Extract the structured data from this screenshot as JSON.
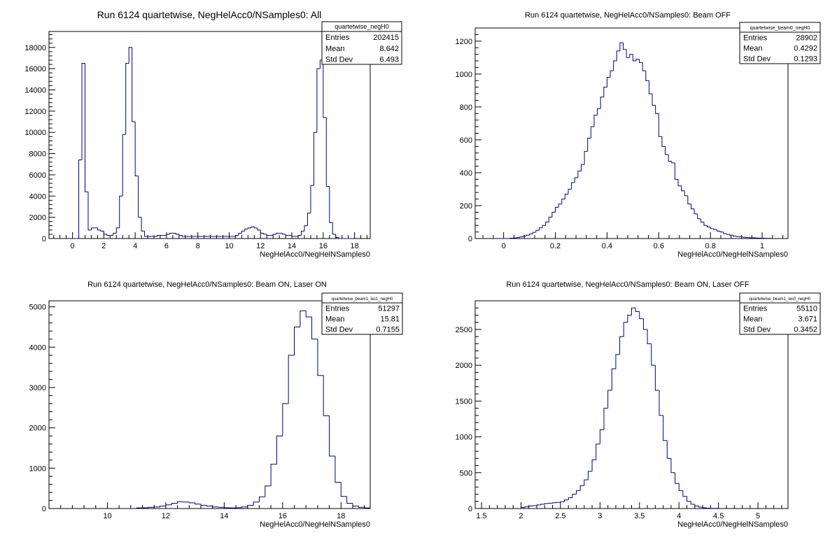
{
  "chart_data": [
    {
      "type": "bar",
      "title": "Run 6124 quartetwise, NegHelAcc0/NSamples0: All",
      "xlabel": "NegHelAcc0/NegHelNSamples0",
      "ylabel": "",
      "xlim": [
        -1.5,
        19.0
      ],
      "ylim": [
        0,
        19500
      ],
      "xticks": [
        0,
        2,
        4,
        6,
        8,
        10,
        12,
        14,
        16,
        18
      ],
      "xtick_labels": [
        "0",
        "2",
        "4",
        "6",
        "8",
        "10",
        "12",
        "14",
        "16",
        "18"
      ],
      "yticks": [
        0,
        2000,
        4000,
        6000,
        8000,
        10000,
        12000,
        14000,
        16000,
        18000
      ],
      "ytick_labels": [
        "0",
        "2000",
        "4000",
        "6000",
        "8000",
        "10000",
        "12000",
        "14000",
        "16000",
        "18000"
      ],
      "bin_start": 0.0,
      "bin_width": 0.2,
      "values": [
        0,
        0,
        7400,
        16500,
        4400,
        800,
        1000,
        1000,
        800,
        700,
        400,
        300,
        300,
        500,
        1000,
        4000,
        9800,
        16500,
        18000,
        11000,
        5900,
        2000,
        700,
        200,
        200,
        200,
        200,
        300,
        300,
        300,
        400,
        500,
        500,
        400,
        300,
        200,
        200,
        200,
        200,
        200,
        200,
        200,
        200,
        200,
        200,
        200,
        200,
        200,
        200,
        200,
        200,
        200,
        300,
        500,
        700,
        900,
        1000,
        1100,
        1000,
        800,
        500,
        400,
        300,
        300,
        400,
        500,
        500,
        400,
        300,
        300,
        200,
        200,
        300,
        700,
        1200,
        2400,
        5000,
        10000,
        16000,
        16800,
        11400,
        4900,
        1500,
        400,
        100,
        0,
        0,
        0,
        0,
        0
      ],
      "stats": {
        "name": "quartetwise_negH0",
        "rows": [
          {
            "label": "Entries",
            "value": "202415"
          },
          {
            "label": "Mean",
            "value": "8.642"
          },
          {
            "label": "Std Dev",
            "value": "6.493"
          }
        ]
      }
    },
    {
      "type": "bar",
      "title": "Run 6124 quartetwise, NegHelAcc0/NSamples0: Beam OFF",
      "xlabel": "NegHelAcc0/NegHelNSamples0",
      "ylabel": "",
      "xlim": [
        -0.11,
        1.1
      ],
      "ylim": [
        0,
        1280
      ],
      "xticks": [
        0,
        0.2,
        0.4,
        0.6,
        0.8,
        1.0
      ],
      "xtick_labels": [
        "0",
        "0.2",
        "0.4",
        "0.6",
        "0.8",
        "1"
      ],
      "yticks": [
        0,
        200,
        400,
        600,
        800,
        1000,
        1200
      ],
      "ytick_labels": [
        "0",
        "200",
        "400",
        "600",
        "800",
        "1000",
        "1200"
      ],
      "bin_start": 0.0,
      "bin_width": 0.0125,
      "values": [
        0,
        0,
        2,
        3,
        6,
        10,
        15,
        20,
        28,
        38,
        50,
        65,
        80,
        100,
        130,
        160,
        190,
        210,
        240,
        270,
        300,
        340,
        370,
        410,
        450,
        530,
        610,
        680,
        750,
        790,
        860,
        920,
        980,
        1020,
        1080,
        1140,
        1190,
        1150,
        1100,
        1120,
        1080,
        1090,
        1070,
        1020,
        960,
        880,
        810,
        760,
        620,
        560,
        510,
        470,
        460,
        360,
        320,
        290,
        260,
        210,
        180,
        150,
        120,
        100,
        80,
        70,
        60,
        55,
        45,
        40,
        30,
        25,
        20,
        15,
        12,
        10,
        8,
        6,
        5,
        4,
        3,
        2,
        2,
        1,
        1
      ],
      "stats": {
        "name": "quartetwise_beam0_negH0",
        "rows": [
          {
            "label": "Entries",
            "value": "28902"
          },
          {
            "label": "Mean",
            "value": "0.4292"
          },
          {
            "label": "Std Dev",
            "value": "0.1293"
          }
        ]
      }
    },
    {
      "type": "bar",
      "title": "Run 6124 quartetwise, NegHelAcc0/NSamples0: Beam ON, Laser ON",
      "xlabel": "NegHelAcc0/NegHelNSamples0",
      "ylabel": "",
      "xlim": [
        8.0,
        19.0
      ],
      "ylim": [
        0,
        5150
      ],
      "xticks": [
        10,
        12,
        14,
        16,
        18
      ],
      "xtick_labels": [
        "10",
        "12",
        "14",
        "16",
        "18"
      ],
      "yticks": [
        0,
        1000,
        2000,
        3000,
        4000,
        5000
      ],
      "ytick_labels": [
        "0",
        "1000",
        "2000",
        "3000",
        "4000",
        "5000"
      ],
      "bin_start": 11.0,
      "bin_width": 0.2,
      "values": [
        15,
        20,
        30,
        40,
        60,
        90,
        130,
        170,
        160,
        140,
        110,
        80,
        60,
        40,
        30,
        20,
        15,
        20,
        40,
        80,
        160,
        290,
        560,
        1100,
        1800,
        2600,
        3800,
        4500,
        4900,
        4750,
        4200,
        3300,
        2300,
        1300,
        650,
        300,
        130,
        60,
        30,
        15
      ],
      "stats": {
        "name": "quartetwise_beam1_las1_negH0",
        "rows": [
          {
            "label": "Entries",
            "value": "51297"
          },
          {
            "label": "Mean",
            "value": "15.81"
          },
          {
            "label": "Std Dev",
            "value": "0.7155"
          }
        ]
      }
    },
    {
      "type": "bar",
      "title": "Run 6124 quartetwise, NegHelAcc0/NSamples0: Beam ON, Laser OFF",
      "xlabel": "NegHelAcc0/NegHelNSamples0",
      "ylabel": "",
      "xlim": [
        1.42,
        5.38
      ],
      "ylim": [
        0,
        2900
      ],
      "xticks": [
        1.5,
        2,
        2.5,
        3,
        3.5,
        4,
        4.5,
        5
      ],
      "xtick_labels": [
        "1.5",
        "2",
        "2.5",
        "3",
        "3.5",
        "4",
        "4.5",
        "5"
      ],
      "yticks": [
        0,
        500,
        1000,
        1500,
        2000,
        2500
      ],
      "ytick_labels": [
        "0",
        "500",
        "1000",
        "1500",
        "2000",
        "2500"
      ],
      "bin_start": 2.0,
      "bin_width": 0.05,
      "values": [
        15,
        25,
        35,
        40,
        50,
        60,
        70,
        75,
        80,
        85,
        95,
        120,
        150,
        200,
        250,
        320,
        400,
        520,
        680,
        900,
        1100,
        1400,
        1650,
        1950,
        2150,
        2400,
        2600,
        2700,
        2800,
        2750,
        2650,
        2500,
        2300,
        2000,
        1650,
        1300,
        950,
        700,
        500,
        350,
        250,
        170,
        100,
        60,
        35,
        20,
        10,
        5,
        3,
        2
      ],
      "stats": {
        "name": "quartetwise_beam1_las0_negH0",
        "rows": [
          {
            "label": "Entries",
            "value": "55110"
          },
          {
            "label": "Mean",
            "value": "3.671"
          },
          {
            "label": "Std Dev",
            "value": "0.3452"
          }
        ]
      }
    }
  ]
}
